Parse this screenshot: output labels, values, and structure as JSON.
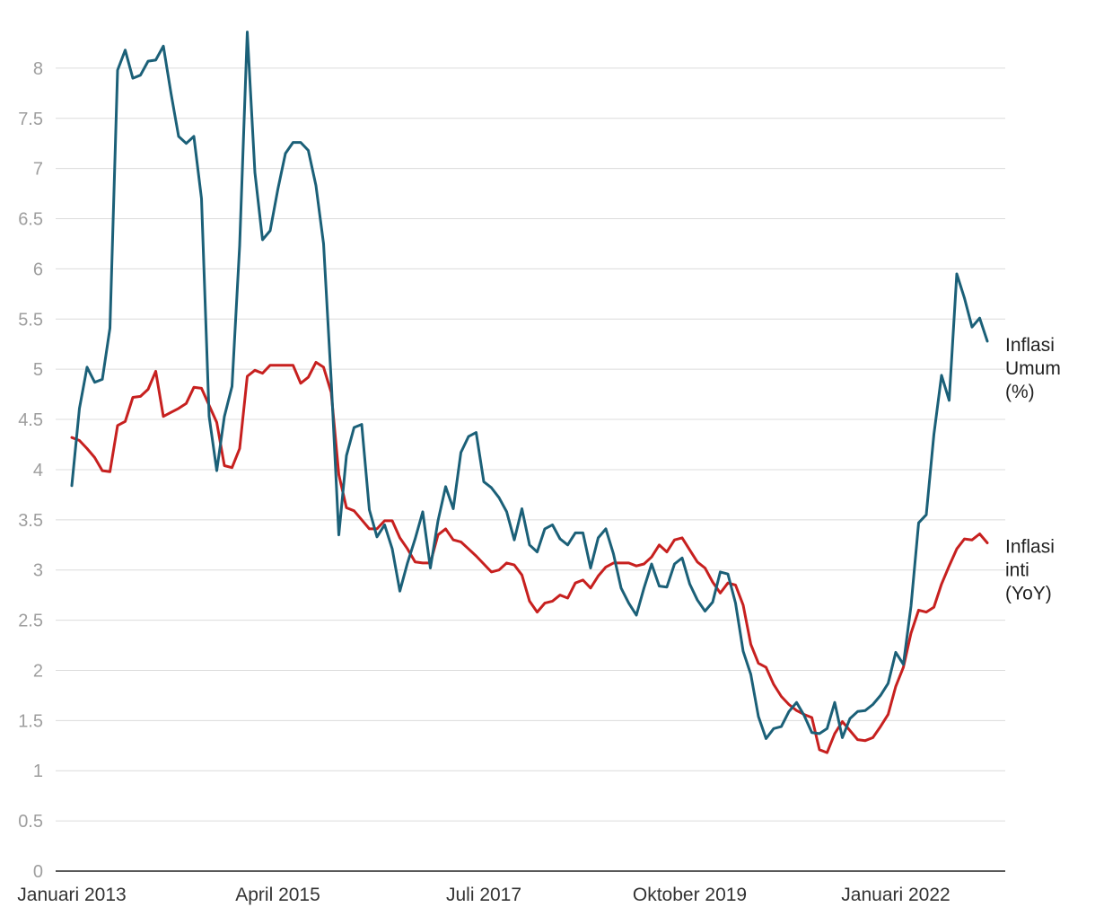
{
  "chart_data": {
    "type": "line",
    "x_start": "2013-01",
    "x_step": "month",
    "xticks": [
      "Januari 2013",
      "April 2015",
      "Juli 2017",
      "Oktober 2019",
      "Januari 2022"
    ],
    "xtick_index": [
      0,
      27,
      54,
      81,
      108
    ],
    "yticks": [
      0,
      0.5,
      1,
      1.5,
      2,
      2.5,
      3,
      3.5,
      4,
      4.5,
      5,
      5.5,
      6,
      6.5,
      7,
      7.5,
      8
    ],
    "ylim": [
      0,
      8.5
    ],
    "grid": true,
    "series": [
      {
        "name": "Inflasi Umum (%)",
        "label_lines": [
          "Inflasi",
          "Umum",
          "(%)"
        ],
        "color": "#1b6078",
        "values": [
          3.84,
          4.61,
          5.02,
          4.87,
          4.9,
          5.41,
          7.98,
          8.18,
          7.9,
          7.93,
          8.07,
          8.08,
          8.22,
          7.75,
          7.32,
          7.25,
          7.32,
          6.7,
          4.53,
          3.99,
          4.53,
          4.83,
          6.23,
          8.36,
          6.96,
          6.29,
          6.38,
          6.79,
          7.15,
          7.26,
          7.26,
          7.18,
          6.83,
          6.25,
          4.89,
          3.35,
          4.14,
          4.42,
          4.45,
          3.6,
          3.33,
          3.45,
          3.21,
          2.79,
          3.07,
          3.31,
          3.58,
          3.02,
          3.49,
          3.83,
          3.61,
          4.17,
          4.33,
          4.37,
          3.88,
          3.82,
          3.72,
          3.58,
          3.3,
          3.61,
          3.25,
          3.18,
          3.41,
          3.45,
          3.31,
          3.25,
          3.37,
          3.37,
          3.02,
          3.32,
          3.41,
          3.16,
          2.82,
          2.67,
          2.55,
          2.82,
          3.06,
          2.84,
          2.83,
          3.06,
          3.12,
          2.86,
          2.7,
          2.59,
          2.68,
          2.98,
          2.96,
          2.67,
          2.19,
          1.96,
          1.54,
          1.32,
          1.42,
          1.44,
          1.59,
          1.68,
          1.55,
          1.38,
          1.37,
          1.42,
          1.68,
          1.33,
          1.52,
          1.59,
          1.6,
          1.66,
          1.75,
          1.87,
          2.18,
          2.06,
          2.64,
          3.47,
          3.55,
          4.35,
          4.94,
          4.69,
          5.95,
          5.71,
          5.42,
          5.51,
          5.28
        ]
      },
      {
        "name": "Inflasi inti (YoY)",
        "label_lines": [
          "Inflasi",
          "inti",
          "(YoY)"
        ],
        "color": "#c7201f",
        "values": [
          4.32,
          4.29,
          4.21,
          4.12,
          3.99,
          3.98,
          4.44,
          4.48,
          4.72,
          4.73,
          4.8,
          4.98,
          4.53,
          4.57,
          4.61,
          4.66,
          4.82,
          4.81,
          4.64,
          4.47,
          4.04,
          4.02,
          4.21,
          4.93,
          4.99,
          4.96,
          5.04,
          5.04,
          5.04,
          5.04,
          4.86,
          4.92,
          5.07,
          5.02,
          4.77,
          3.95,
          3.62,
          3.59,
          3.5,
          3.41,
          3.41,
          3.49,
          3.49,
          3.32,
          3.21,
          3.08,
          3.07,
          3.07,
          3.35,
          3.41,
          3.3,
          3.28,
          3.21,
          3.14,
          3.06,
          2.98,
          3.0,
          3.07,
          3.05,
          2.95,
          2.69,
          2.58,
          2.67,
          2.69,
          2.75,
          2.72,
          2.87,
          2.9,
          2.82,
          2.94,
          3.03,
          3.07,
          3.07,
          3.07,
          3.04,
          3.06,
          3.13,
          3.25,
          3.18,
          3.3,
          3.32,
          3.2,
          3.08,
          3.02,
          2.88,
          2.77,
          2.87,
          2.85,
          2.65,
          2.26,
          2.07,
          2.03,
          1.86,
          1.74,
          1.66,
          1.6,
          1.56,
          1.53,
          1.21,
          1.18,
          1.37,
          1.49,
          1.4,
          1.31,
          1.3,
          1.33,
          1.44,
          1.56,
          1.84,
          2.03,
          2.37,
          2.6,
          2.58,
          2.63,
          2.86,
          3.04,
          3.21,
          3.31,
          3.3,
          3.36,
          3.27
        ]
      }
    ]
  }
}
